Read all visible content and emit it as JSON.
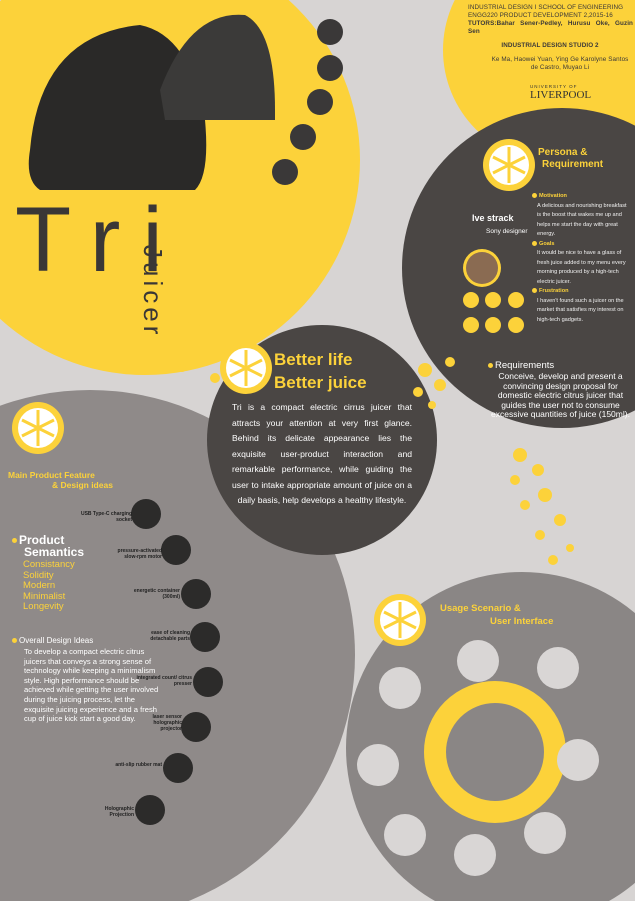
{
  "header": {
    "course": [
      "INDUSTRIAL DESIGN I SCHOOL OF ENGINEERING",
      "ENGG220 PRODUCT DEVELOPMENT 2,2015-16",
      "TUTORS:Bahar Sener-Pedley, Hurusu Oke, Guzin Sen"
    ],
    "studio": "INDUSTRIAL DESIGN STUDIO 2",
    "authors": "Ke Ma, Haowei Yuan, Ying Ge Karolyne Santos de Castro, Muyao Li",
    "university_small": "UNIVERSITY OF",
    "university": "LIVERPOOL"
  },
  "title": {
    "name": "Tri",
    "subtitle": "Juicer"
  },
  "tagline": [
    "Better life",
    "Better juice"
  ],
  "intro": "Tri is a compact electric cirrus juicer that attracts your attention at very first glance. Behind its delicate appearance lies the exquisite user-product interaction and remarkable performance, while guiding the user to intake appropriate amount of juice on a daily basis, help develops a healthy lifestyle.",
  "persona": {
    "heading": [
      "Persona &",
      "Requirement"
    ],
    "name": "Ive strack",
    "role": "Sony designer",
    "sections": [
      {
        "label": "Motivation",
        "text": "A delicious and nourishing breakfast is the boost that wakes me up and helps me start the day with great energy."
      },
      {
        "label": "Goals",
        "text": "It would be nice to have a glass of fresh juice added to my menu every morning produced by a high-tech electric juicer."
      },
      {
        "label": "Frustration",
        "text": "I haven't found such a juicer on the market that satisfies my interest on high-tech gadgets."
      }
    ],
    "requirements_label": "Requirements",
    "requirements": "Conceive, develop and present a convincing design proposal for domestic electric citrus juicer that guides the user not to consume excessive quantities of juice (150ml)."
  },
  "features": {
    "heading": [
      "Main Product Feature",
      "& Design ideas"
    ],
    "semantics_label": [
      "Product",
      "Semantics"
    ],
    "semantics": [
      "Consistancy",
      "Solidity",
      "Modern",
      "Minimalist",
      "Longevity"
    ],
    "ideas_label": "Overall Design Ideas",
    "ideas": "To develop a compact electric citrus juicers that conveys a strong sense of technology while keeping a minimalism style. High performance should be achieved while getting the user involved during the juicing process, let the exquisite juicing experience and a fresh cup of juice kick start a good day.",
    "callouts": [
      "USB Type-C charging socket",
      "pressure-activated slow-rpm motor",
      "energetic container (300ml)",
      "ease of cleaning detachable parts",
      "integrated count/ citrus presser",
      "laser sensor holographic projector",
      "anti-slip rubber mat",
      "Holographic Projection"
    ]
  },
  "usage": {
    "heading": [
      "Usage Scenario &",
      "User Interface"
    ]
  }
}
